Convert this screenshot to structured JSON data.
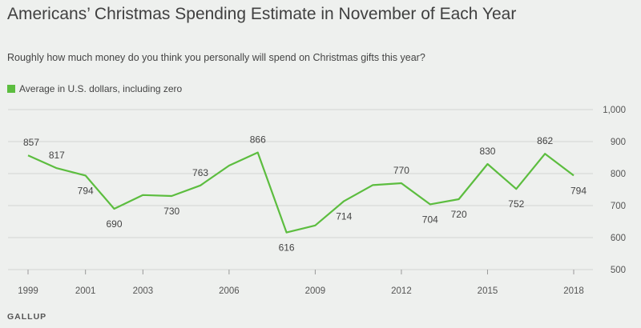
{
  "title": "Americans’ Christmas Spending Estimate in November of Each Year",
  "subtitle": "Roughly how much money do you think you personally will spend on Christmas gifts this year?",
  "legend_label": "Average in U.S. dollars, including zero",
  "source": "GALLUP",
  "colors": {
    "line": "#5cbd3f",
    "grid": "#d3d3d3",
    "background": "#eef0ee"
  },
  "chart_data": {
    "type": "line",
    "title": "Americans’ Christmas Spending Estimate in November of Each Year",
    "xlabel": "",
    "ylabel": "",
    "ylim": [
      500,
      1000
    ],
    "yticks": [
      500,
      600,
      700,
      800,
      900,
      "1,000"
    ],
    "xticks": [
      "1999",
      "2001",
      "2003",
      "2006",
      "2009",
      "2012",
      "2015",
      "2018"
    ],
    "series": [
      {
        "name": "Average in U.S. dollars, including zero",
        "x": [
          1999,
          2000,
          2001,
          2002,
          2003,
          2004,
          2005,
          2006,
          2007,
          2008,
          2009,
          2010,
          2011,
          2012,
          2013,
          2014,
          2015,
          2016,
          2017,
          2018
        ],
        "values": [
          857,
          817,
          794,
          690,
          733,
          730,
          763,
          825,
          866,
          616,
          638,
          714,
          764,
          770,
          704,
          720,
          830,
          752,
          862,
          794
        ],
        "labels": {
          "1999": "857",
          "2000": "817",
          "2001": "794",
          "2002": "690",
          "2004": "730",
          "2005": "763",
          "2007": "866",
          "2008": "616",
          "2010": "714",
          "2012": "770",
          "2013": "704",
          "2014": "720",
          "2015": "830",
          "2016": "752",
          "2017": "862",
          "2018": "794"
        }
      }
    ]
  }
}
